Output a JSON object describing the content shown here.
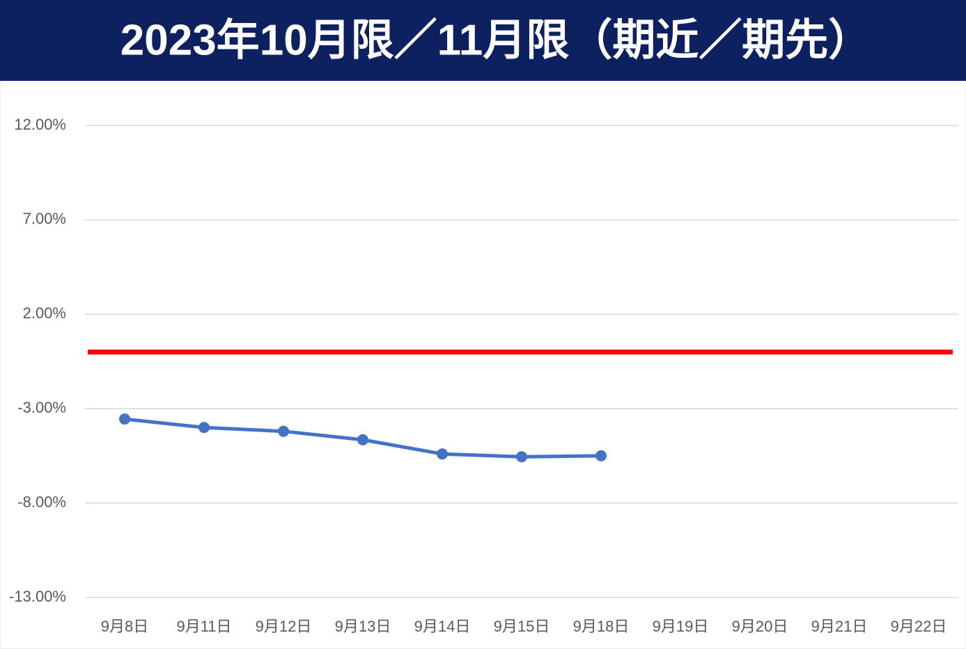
{
  "chart_data": {
    "type": "line",
    "title": "2023年10月限／11月限（期近／期先）",
    "categories": [
      "9月8日",
      "9月11日",
      "9月12日",
      "9月13日",
      "9月14日",
      "9月15日",
      "9月18日",
      "9月19日",
      "9月20日",
      "9月21日",
      "9月22日"
    ],
    "series": [
      {
        "color": "#4472c4",
        "values": [
          -3.55,
          -4.0,
          -4.2,
          -4.65,
          -5.4,
          -5.55,
          -5.5,
          null,
          null,
          null,
          null
        ]
      }
    ],
    "reference_line": {
      "value": 0,
      "color": "#ff0000"
    },
    "ylim": [
      -13,
      12
    ],
    "yticks": [
      {
        "value": -13,
        "label": "-13.00%"
      },
      {
        "value": -8,
        "label": "-8.00%"
      },
      {
        "value": -3,
        "label": "-3.00%"
      },
      {
        "value": 2,
        "label": "2.00%"
      },
      {
        "value": 7,
        "label": "7.00%"
      },
      {
        "value": 12,
        "label": "12.00%"
      }
    ],
    "grid": true
  }
}
